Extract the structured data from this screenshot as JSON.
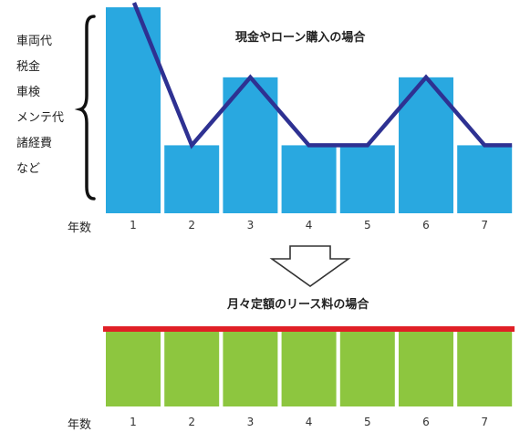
{
  "cost_items": [
    "車両代",
    "税金",
    "車検",
    "メンテ代",
    "諸経費",
    "など"
  ],
  "cash_chart": {
    "title": "現金やローン購入の場合",
    "axis_label": "年数"
  },
  "lease_chart": {
    "title": "月々定額のリース料の場合",
    "axis_label": "年数"
  },
  "colors": {
    "cash_bar": "#29a8e0",
    "cost_line": "#2e3192",
    "lease_bar": "#8dc63f",
    "lease_line": "#e01f26",
    "arrow": "#333333"
  },
  "chart_data": [
    {
      "type": "bar",
      "title": "現金やローン購入の場合",
      "xlabel": "年数",
      "categories": [
        "1",
        "2",
        "3",
        "4",
        "5",
        "6",
        "7"
      ],
      "values": [
        1.0,
        0.33,
        0.66,
        0.33,
        0.33,
        0.66,
        0.33
      ],
      "line_values": [
        1.0,
        0.33,
        0.66,
        0.33,
        0.33,
        0.66,
        0.33
      ],
      "ylim": [
        0,
        1
      ]
    },
    {
      "type": "bar",
      "title": "月々定額のリース料の場合",
      "xlabel": "年数",
      "categories": [
        "1",
        "2",
        "3",
        "4",
        "5",
        "6",
        "7"
      ],
      "values": [
        1,
        1,
        1,
        1,
        1,
        1,
        1
      ],
      "ylim": [
        0,
        1
      ]
    }
  ]
}
